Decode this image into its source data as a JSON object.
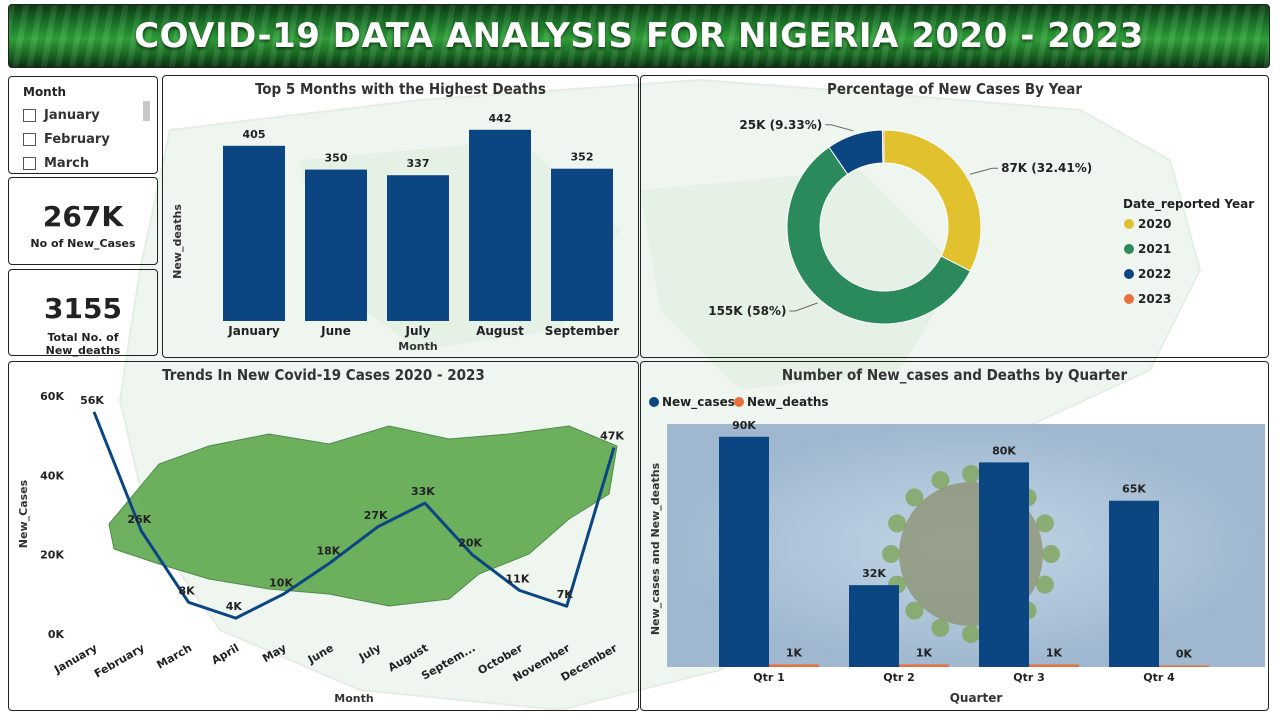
{
  "header": {
    "title": "COVID-19 DATA ANALYSIS FOR NIGERIA 2020 - 2023"
  },
  "slicer": {
    "title": "Month",
    "items": [
      "January",
      "February",
      "March"
    ]
  },
  "kpis": [
    {
      "value": "267K",
      "label": "No of New_Cases"
    },
    {
      "value": "3155",
      "label": "Total No. of New_deaths"
    }
  ],
  "colors": {
    "navy": "#0b4582",
    "green": "#2a8a5c",
    "gold": "#e2c12f",
    "orange": "#e8703a"
  },
  "chart_data": [
    {
      "type": "bar",
      "title": "Top 5 Months with the Highest Deaths",
      "xlabel": "Month",
      "ylabel": "New_deaths",
      "categories": [
        "January",
        "June",
        "July",
        "August",
        "September"
      ],
      "values": [
        405,
        350,
        337,
        442,
        352
      ],
      "data_labels": [
        "405",
        "350",
        "337",
        "442",
        "352"
      ],
      "ylim": [
        0,
        460
      ],
      "color": "#0b4582"
    },
    {
      "type": "pie",
      "title": "Percentage of New Cases By Year",
      "legend_title": "Date_reported Year",
      "legend_position": "right",
      "slices": [
        {
          "label": "2020",
          "value": 87,
          "pct": 32.41,
          "display": "87K (32.41%)",
          "color": "#e2c12f"
        },
        {
          "label": "2021",
          "value": 155,
          "pct": 58,
          "display": "155K (58%)",
          "color": "#2a8a5c"
        },
        {
          "label": "2022",
          "value": 25,
          "pct": 9.33,
          "display": "25K (9.33%)",
          "color": "#0b4582"
        },
        {
          "label": "2023",
          "value": 0.7,
          "pct": 0.26,
          "display": "",
          "color": "#e8703a"
        }
      ]
    },
    {
      "type": "line",
      "title": "Trends In New Covid-19 Cases 2020 - 2023",
      "xlabel": "Month",
      "ylabel": "New_Cases",
      "categories": [
        "January",
        "February",
        "March",
        "April",
        "May",
        "June",
        "July",
        "August",
        "Septem...",
        "October",
        "November",
        "December"
      ],
      "values": [
        56,
        26,
        8,
        4,
        10,
        18,
        27,
        33,
        20,
        11,
        7,
        47
      ],
      "data_labels": [
        "56K",
        "26K",
        "8K",
        "4K",
        "10K",
        "18K",
        "27K",
        "33K",
        "20K",
        "11K",
        "7K",
        "47K"
      ],
      "yticks": [
        "0K",
        "20K",
        "40K",
        "60K"
      ],
      "ylim": [
        0,
        60
      ],
      "grid": false,
      "color": "#0b4582"
    },
    {
      "type": "bar",
      "title": "Number of New_cases and Deaths by Quarter",
      "xlabel": "Quarter",
      "ylabel": "New_cases and New_deaths",
      "legend_position": "top-left",
      "categories": [
        "Qtr 1",
        "Qtr 2",
        "Qtr 3",
        "Qtr 4"
      ],
      "ylim": [
        0,
        95
      ],
      "series": [
        {
          "name": "New_cases",
          "values": [
            90,
            32,
            80,
            65
          ],
          "data_labels": [
            "90K",
            "32K",
            "80K",
            "65K"
          ],
          "color": "#0b4582"
        },
        {
          "name": "New_deaths",
          "values": [
            1,
            1,
            1,
            0
          ],
          "data_labels": [
            "1K",
            "1K",
            "1K",
            "0K"
          ],
          "color": "#e8703a"
        }
      ]
    }
  ]
}
